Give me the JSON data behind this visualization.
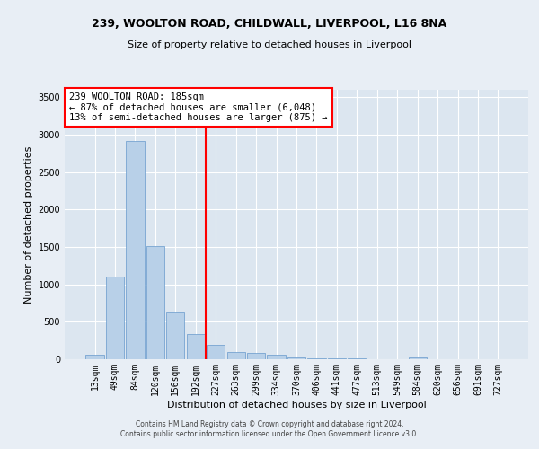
{
  "title_line1": "239, WOOLTON ROAD, CHILDWALL, LIVERPOOL, L16 8NA",
  "title_line2": "Size of property relative to detached houses in Liverpool",
  "xlabel": "Distribution of detached houses by size in Liverpool",
  "ylabel": "Number of detached properties",
  "bar_labels": [
    "13sqm",
    "49sqm",
    "84sqm",
    "120sqm",
    "156sqm",
    "192sqm",
    "227sqm",
    "263sqm",
    "299sqm",
    "334sqm",
    "370sqm",
    "406sqm",
    "441sqm",
    "477sqm",
    "513sqm",
    "549sqm",
    "584sqm",
    "620sqm",
    "656sqm",
    "691sqm",
    "727sqm"
  ],
  "bar_values": [
    55,
    1100,
    2920,
    1510,
    640,
    340,
    195,
    100,
    85,
    55,
    25,
    15,
    12,
    8,
    5,
    4,
    30,
    3,
    2,
    1,
    1
  ],
  "bar_color": "#b8d0e8",
  "bar_edge_color": "#6699cc",
  "vline_x": 5.5,
  "vline_color": "red",
  "annotation_title": "239 WOOLTON ROAD: 185sqm",
  "annotation_line1": "← 87% of detached houses are smaller (6,048)",
  "annotation_line2": "13% of semi-detached houses are larger (875) →",
  "ylim": [
    0,
    3600
  ],
  "yticks": [
    0,
    500,
    1000,
    1500,
    2000,
    2500,
    3000,
    3500
  ],
  "footer_line1": "Contains HM Land Registry data © Crown copyright and database right 2024.",
  "footer_line2": "Contains public sector information licensed under the Open Government Licence v3.0.",
  "bg_color": "#e8eef5",
  "plot_bg_color": "#dce6f0",
  "title_fontsize": 9,
  "subtitle_fontsize": 8,
  "ylabel_fontsize": 8,
  "xlabel_fontsize": 8,
  "tick_fontsize": 7,
  "footer_fontsize": 5.5
}
